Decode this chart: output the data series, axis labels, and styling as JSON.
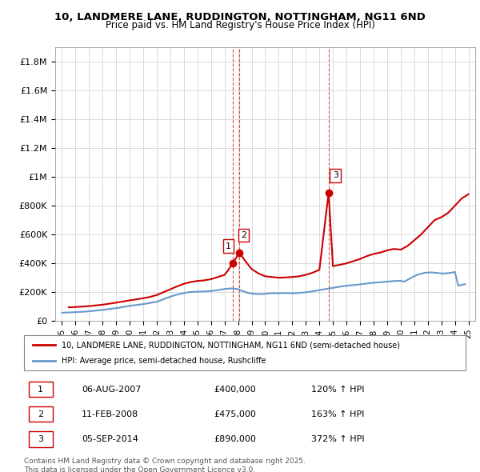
{
  "title1": "10, LANDMERE LANE, RUDDINGTON, NOTTINGHAM, NG11 6ND",
  "title2": "Price paid vs. HM Land Registry's House Price Index (HPI)",
  "legend_property": "10, LANDMERE LANE, RUDDINGTON, NOTTINGHAM, NG11 6ND (semi-detached house)",
  "legend_hpi": "HPI: Average price, semi-detached house, Rushcliffe",
  "footer": "Contains HM Land Registry data © Crown copyright and database right 2025.\nThis data is licensed under the Open Government Licence v3.0.",
  "property_color": "#cc0000",
  "hpi_color": "#6699cc",
  "background_color": "#ffffff",
  "ylim": [
    0,
    1900000
  ],
  "yticks": [
    0,
    200000,
    400000,
    600000,
    800000,
    1000000,
    1200000,
    1400000,
    1600000,
    1800000
  ],
  "ytick_labels": [
    "£0",
    "£200K",
    "£400K",
    "£600K",
    "£800K",
    "£1M",
    "£1.2M",
    "£1.4M",
    "£1.6M",
    "£1.8M"
  ],
  "sale_dates": [
    2007.59,
    2008.11,
    2014.68
  ],
  "sale_prices": [
    400000,
    475000,
    890000
  ],
  "sale_labels": [
    "1",
    "2",
    "3"
  ],
  "sale_texts": [
    [
      "1",
      "06-AUG-2007",
      "£400,000",
      "120% ↑ HPI"
    ],
    [
      "2",
      "11-FEB-2008",
      "£475,000",
      "163% ↑ HPI"
    ],
    [
      "3",
      "05-SEP-2014",
      "£890,000",
      "372% ↑ HPI"
    ]
  ],
  "hpi_years": [
    1995.0,
    1995.25,
    1995.5,
    1995.75,
    1996.0,
    1996.25,
    1996.5,
    1996.75,
    1997.0,
    1997.25,
    1997.5,
    1997.75,
    1998.0,
    1998.25,
    1998.5,
    1998.75,
    1999.0,
    1999.25,
    1999.5,
    1999.75,
    2000.0,
    2000.25,
    2000.5,
    2000.75,
    2001.0,
    2001.25,
    2001.5,
    2001.75,
    2002.0,
    2002.25,
    2002.5,
    2002.75,
    2003.0,
    2003.25,
    2003.5,
    2003.75,
    2004.0,
    2004.25,
    2004.5,
    2004.75,
    2005.0,
    2005.25,
    2005.5,
    2005.75,
    2006.0,
    2006.25,
    2006.5,
    2006.75,
    2007.0,
    2007.25,
    2007.5,
    2007.75,
    2008.0,
    2008.25,
    2008.5,
    2008.75,
    2009.0,
    2009.25,
    2009.5,
    2009.75,
    2010.0,
    2010.25,
    2010.5,
    2010.75,
    2011.0,
    2011.25,
    2011.5,
    2011.75,
    2012.0,
    2012.25,
    2012.5,
    2012.75,
    2013.0,
    2013.25,
    2013.5,
    2013.75,
    2014.0,
    2014.25,
    2014.5,
    2014.75,
    2015.0,
    2015.25,
    2015.5,
    2015.75,
    2016.0,
    2016.25,
    2016.5,
    2016.75,
    2017.0,
    2017.25,
    2017.5,
    2017.75,
    2018.0,
    2018.25,
    2018.5,
    2018.75,
    2019.0,
    2019.25,
    2019.5,
    2019.75,
    2020.0,
    2020.25,
    2020.5,
    2020.75,
    2021.0,
    2021.25,
    2021.5,
    2021.75,
    2022.0,
    2022.25,
    2022.5,
    2022.75,
    2023.0,
    2023.25,
    2023.5,
    2023.75,
    2024.0,
    2024.25,
    2024.5,
    2024.75
  ],
  "hpi_values": [
    57000,
    58000,
    59000,
    60000,
    61000,
    62500,
    64000,
    65500,
    67000,
    69500,
    72000,
    74500,
    77000,
    80000,
    83000,
    86000,
    89000,
    93000,
    97000,
    101000,
    105000,
    108000,
    111000,
    114000,
    117000,
    121000,
    125000,
    129000,
    133000,
    142000,
    151000,
    160000,
    169000,
    176000,
    183000,
    188000,
    193000,
    198000,
    201000,
    202000,
    203000,
    204000,
    205000,
    206000,
    208000,
    211000,
    214000,
    218000,
    222000,
    224000,
    226000,
    224000,
    220000,
    211000,
    202000,
    195000,
    190000,
    188000,
    186000,
    187000,
    188000,
    191000,
    193000,
    193000,
    192000,
    193000,
    194000,
    193000,
    192000,
    193000,
    195000,
    197000,
    199000,
    202000,
    206000,
    210000,
    214000,
    218000,
    222000,
    226000,
    230000,
    234000,
    238000,
    241000,
    244000,
    247000,
    249000,
    251000,
    254000,
    257000,
    260000,
    263000,
    265000,
    267000,
    269000,
    271000,
    273000,
    275000,
    277000,
    278000,
    279000,
    272000,
    285000,
    298000,
    311000,
    321000,
    328000,
    334000,
    336000,
    337000,
    335000,
    333000,
    330000,
    330000,
    332000,
    335000,
    340000,
    245000,
    250000,
    255000
  ],
  "property_years": [
    1995.5,
    1996.0,
    1996.5,
    1997.0,
    1997.5,
    1998.0,
    1998.5,
    1999.0,
    1999.5,
    2000.0,
    2000.5,
    2001.0,
    2001.5,
    2002.0,
    2002.5,
    2003.0,
    2003.5,
    2004.0,
    2004.5,
    2005.0,
    2005.5,
    2006.0,
    2006.5,
    2007.0,
    2007.25,
    2007.59,
    2008.11,
    2008.5,
    2009.0,
    2009.5,
    2010.0,
    2010.5,
    2011.0,
    2011.5,
    2012.0,
    2012.5,
    2013.0,
    2013.5,
    2014.0,
    2014.68,
    2015.0,
    2015.5,
    2016.0,
    2016.5,
    2017.0,
    2017.5,
    2018.0,
    2018.5,
    2019.0,
    2019.5,
    2020.0,
    2020.5,
    2021.0,
    2021.5,
    2022.0,
    2022.5,
    2023.0,
    2023.5,
    2024.0,
    2024.5,
    2025.0
  ],
  "property_values": [
    95000,
    97000,
    100000,
    103000,
    108000,
    113000,
    120000,
    127000,
    135000,
    143000,
    150000,
    158000,
    167000,
    180000,
    200000,
    220000,
    240000,
    258000,
    270000,
    278000,
    282000,
    290000,
    305000,
    320000,
    350000,
    400000,
    475000,
    420000,
    360000,
    330000,
    310000,
    305000,
    300000,
    302000,
    305000,
    310000,
    320000,
    335000,
    355000,
    890000,
    380000,
    390000,
    400000,
    415000,
    430000,
    450000,
    465000,
    475000,
    490000,
    500000,
    495000,
    520000,
    560000,
    600000,
    650000,
    700000,
    720000,
    750000,
    800000,
    850000,
    880000
  ],
  "xticks": [
    1995,
    1996,
    1997,
    1998,
    1999,
    2000,
    2001,
    2002,
    2003,
    2004,
    2005,
    2006,
    2007,
    2008,
    2009,
    2010,
    2011,
    2012,
    2013,
    2014,
    2015,
    2016,
    2017,
    2018,
    2019,
    2020,
    2021,
    2022,
    2023,
    2024,
    2025
  ],
  "xlim": [
    1994.5,
    2025.5
  ]
}
